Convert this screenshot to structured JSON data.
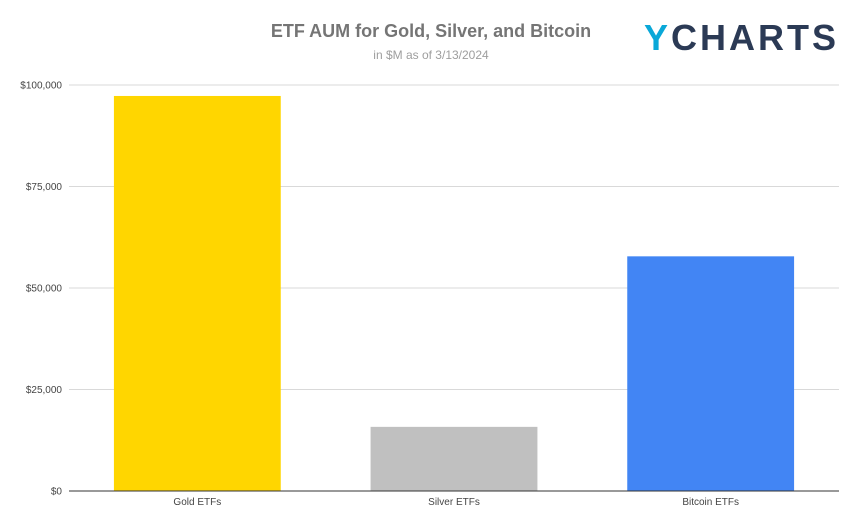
{
  "logo": {
    "text": "YCHARTS",
    "colors": {
      "y": "#0aa8d8",
      "rest": "#2b3a55"
    }
  },
  "chart_data": {
    "type": "bar",
    "title": "ETF AUM for Gold, Silver, and Bitcoin",
    "subtitle": "in $M as of 3/13/2024",
    "xlabel": "",
    "ylabel": "",
    "categories": [
      "Gold ETFs",
      "Silver ETFs",
      "Bitcoin ETFs"
    ],
    "values": [
      97300,
      15800,
      57800
    ],
    "colors": [
      "#ffd600",
      "#c0c0c0",
      "#4285f4"
    ],
    "ylim": [
      0,
      100000
    ],
    "yticks": [
      0,
      25000,
      50000,
      75000,
      100000
    ],
    "ytick_labels": [
      "$0",
      "$25,000",
      "$50,000",
      "$75,000",
      "$100,000"
    ],
    "grid": true,
    "legend": "none"
  }
}
